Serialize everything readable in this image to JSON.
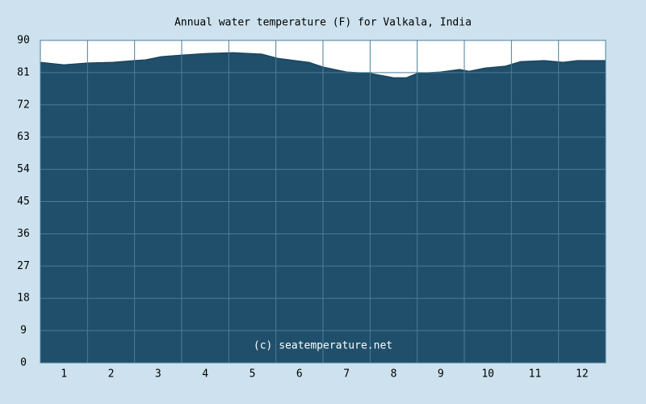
{
  "chart_data": {
    "type": "area",
    "title": "Annual water temperature (F) for Valkala, India",
    "annotation": "(c) seatemperature.net",
    "x": [
      0.5,
      1.0,
      1.5,
      2.04,
      2.5,
      2.73,
      3.07,
      3.5,
      4.07,
      4.6,
      5.2,
      5.54,
      6.2,
      6.5,
      7.0,
      7.5,
      8.0,
      8.27,
      8.5,
      9.0,
      9.4,
      9.6,
      9.94,
      10.36,
      10.7,
      11.2,
      11.6,
      11.9,
      12.5
    ],
    "series": [
      {
        "name": "Water temperature",
        "color": "#1f4f6b",
        "values": [
          83.9,
          83.2,
          83.7,
          83.9,
          84.4,
          84.6,
          85.5,
          85.9,
          86.4,
          86.6,
          86.2,
          85.0,
          83.9,
          82.6,
          81.2,
          80.8,
          79.6,
          79.6,
          80.8,
          81.2,
          81.9,
          81.4,
          82.3,
          82.8,
          84.1,
          84.4,
          83.9,
          84.4,
          84.4
        ]
      }
    ],
    "xlim": [
      0.5,
      12.5
    ],
    "xticks": [
      1,
      2,
      3,
      4,
      5,
      6,
      7,
      8,
      9,
      10,
      11,
      12
    ],
    "ylim": [
      0,
      90
    ],
    "yticks": [
      0,
      9,
      18,
      27,
      36,
      45,
      54,
      63,
      72,
      81,
      90
    ],
    "grid": true
  }
}
